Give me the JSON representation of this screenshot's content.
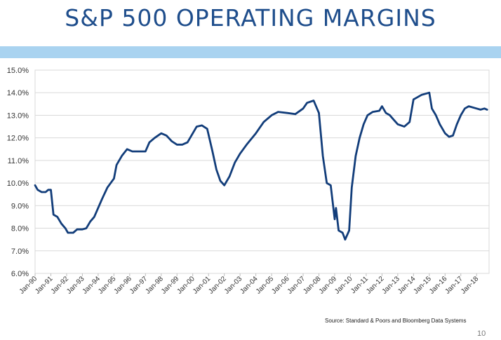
{
  "slide": {
    "title": "S&P 500 OPERATING MARGINS",
    "source": "Source:  Standard & Poors and Bloomberg Data Systems",
    "page_number": "10",
    "band_color": "#a9d3f0"
  },
  "chart_data": {
    "type": "line",
    "title": "",
    "xlabel": "",
    "ylabel": "",
    "ylim": [
      6.0,
      15.0
    ],
    "y_ticks": [
      "6.0%",
      "7.0%",
      "8.0%",
      "9.0%",
      "10.0%",
      "11.0%",
      "12.0%",
      "13.0%",
      "14.0%",
      "15.0%"
    ],
    "x_ticks": [
      "Jan-90",
      "Jan-91",
      "Jan-92",
      "Jan-93",
      "Jan-94",
      "Jan-95",
      "Jan-96",
      "Jan-97",
      "Jan-98",
      "Jan-99",
      "Jan-00",
      "Jan-01",
      "Jan-02",
      "Jan-03",
      "Jan-04",
      "Jan-05",
      "Jan-06",
      "Jan-07",
      "Jan-08",
      "Jan-09",
      "Jan-10",
      "Jan-11",
      "Jan-12",
      "Jan-13",
      "Jan-14",
      "Jan-15",
      "Jan-16",
      "Jan-17",
      "Jan-18"
    ],
    "grid": true,
    "line_color": "#123d7a",
    "series": [
      {
        "values": [
          [
            "1990-01",
            9.9
          ],
          [
            "1990-03",
            9.7
          ],
          [
            "1990-06",
            9.6
          ],
          [
            "1990-09",
            9.6
          ],
          [
            "1990-11",
            9.7
          ],
          [
            "1991-01",
            9.7
          ],
          [
            "1991-03",
            8.6
          ],
          [
            "1991-06",
            8.5
          ],
          [
            "1991-09",
            8.2
          ],
          [
            "1991-12",
            8.0
          ],
          [
            "1992-02",
            7.8
          ],
          [
            "1992-06",
            7.8
          ],
          [
            "1992-09",
            7.95
          ],
          [
            "1993-01",
            7.95
          ],
          [
            "1993-04",
            8.0
          ],
          [
            "1993-07",
            8.3
          ],
          [
            "1993-10",
            8.5
          ],
          [
            "1994-01",
            8.9
          ],
          [
            "1994-04",
            9.3
          ],
          [
            "1994-08",
            9.8
          ],
          [
            "1995-01",
            10.2
          ],
          [
            "1995-03",
            10.8
          ],
          [
            "1995-07",
            11.2
          ],
          [
            "1995-11",
            11.5
          ],
          [
            "1996-03",
            11.4
          ],
          [
            "1996-08",
            11.4
          ],
          [
            "1997-01",
            11.4
          ],
          [
            "1997-04",
            11.8
          ],
          [
            "1997-08",
            12.0
          ],
          [
            "1998-01",
            12.2
          ],
          [
            "1998-05",
            12.1
          ],
          [
            "1998-09",
            11.85
          ],
          [
            "1999-01",
            11.7
          ],
          [
            "1999-05",
            11.7
          ],
          [
            "1999-09",
            11.8
          ],
          [
            "2000-01",
            12.2
          ],
          [
            "2000-04",
            12.5
          ],
          [
            "2000-08",
            12.55
          ],
          [
            "2000-12",
            12.4
          ],
          [
            "2001-04",
            11.4
          ],
          [
            "2001-07",
            10.6
          ],
          [
            "2001-10",
            10.1
          ],
          [
            "2002-01",
            9.9
          ],
          [
            "2002-05",
            10.3
          ],
          [
            "2002-09",
            10.9
          ],
          [
            "2003-01",
            11.3
          ],
          [
            "2003-06",
            11.7
          ],
          [
            "2004-01",
            12.2
          ],
          [
            "2004-07",
            12.7
          ],
          [
            "2005-01",
            13.0
          ],
          [
            "2005-06",
            13.15
          ],
          [
            "2006-01",
            13.1
          ],
          [
            "2006-07",
            13.05
          ],
          [
            "2007-01",
            13.3
          ],
          [
            "2007-04",
            13.55
          ],
          [
            "2007-09",
            13.65
          ],
          [
            "2008-01",
            13.1
          ],
          [
            "2008-04",
            11.2
          ],
          [
            "2008-07",
            10.0
          ],
          [
            "2008-10",
            9.9
          ],
          [
            "2009-01",
            8.4
          ],
          [
            "2009-02",
            8.9
          ],
          [
            "2009-04",
            7.9
          ],
          [
            "2009-07",
            7.8
          ],
          [
            "2009-09",
            7.5
          ],
          [
            "2009-12",
            7.9
          ],
          [
            "2010-02",
            9.8
          ],
          [
            "2010-05",
            11.2
          ],
          [
            "2010-08",
            12.0
          ],
          [
            "2010-11",
            12.6
          ],
          [
            "2011-02",
            13.0
          ],
          [
            "2011-06",
            13.15
          ],
          [
            "2011-11",
            13.2
          ],
          [
            "2012-01",
            13.4
          ],
          [
            "2012-04",
            13.1
          ],
          [
            "2012-07",
            13.0
          ],
          [
            "2012-10",
            12.8
          ],
          [
            "2013-01",
            12.6
          ],
          [
            "2013-06",
            12.5
          ],
          [
            "2013-10",
            12.7
          ],
          [
            "2014-01",
            13.7
          ],
          [
            "2014-04",
            13.8
          ],
          [
            "2014-07",
            13.9
          ],
          [
            "2014-10",
            13.95
          ],
          [
            "2015-01",
            14.0
          ],
          [
            "2015-03",
            13.3
          ],
          [
            "2015-06",
            13.0
          ],
          [
            "2015-09",
            12.6
          ],
          [
            "2016-01",
            12.2
          ],
          [
            "2016-04",
            12.05
          ],
          [
            "2016-07",
            12.1
          ],
          [
            "2016-10",
            12.6
          ],
          [
            "2017-01",
            13.0
          ],
          [
            "2017-04",
            13.3
          ],
          [
            "2017-07",
            13.4
          ],
          [
            "2017-10",
            13.35
          ],
          [
            "2018-01",
            13.3
          ],
          [
            "2018-04",
            13.25
          ],
          [
            "2018-07",
            13.3
          ],
          [
            "2018-09",
            13.25
          ]
        ]
      }
    ]
  }
}
